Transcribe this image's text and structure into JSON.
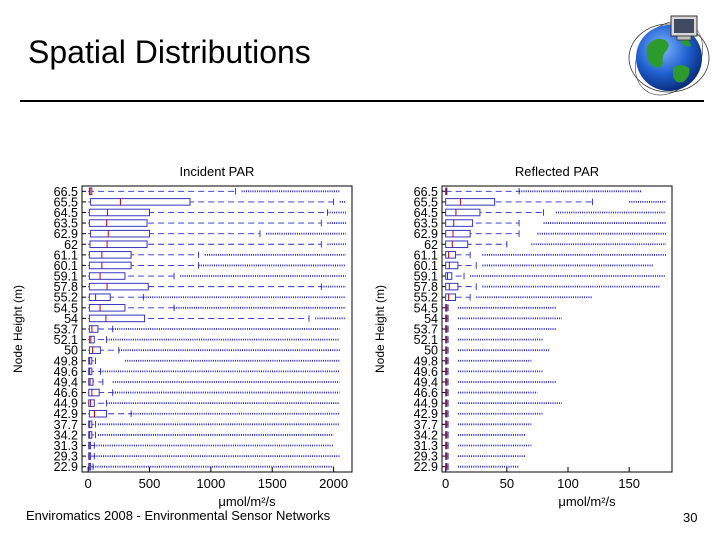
{
  "slide": {
    "title": "Spatial Distributions",
    "footer": "Enviromatics 2008 - Environmental Sensor Networks",
    "page_number": "30",
    "logo_icon": "globe-computer-icon"
  },
  "colors": {
    "box": "#3535c0",
    "whisker": "#2a2ad0",
    "outlier": "#2020c8",
    "median": "#c00000",
    "text": "#000000"
  },
  "chart_data": [
    {
      "type": "boxplot",
      "title": "Incident PAR",
      "ylabel": "Node Height (m)",
      "xlabel": "μmol/m²/s",
      "xlim": [
        -50,
        2150
      ],
      "xticks": [
        0,
        500,
        1000,
        1500,
        2000
      ],
      "categories": [
        "66.5",
        "65.5",
        "64.5",
        "63.5",
        "62.9",
        "62",
        "61.1",
        "60.1",
        "59.1",
        "57.8",
        "55.2",
        "54.5",
        "54",
        "53.7",
        "52.1",
        "50",
        "49.8",
        "49.6",
        "49.4",
        "46.6",
        "44.9",
        "42.9",
        "37.7",
        "34.2",
        "31.3",
        "29.3",
        "22.9"
      ],
      "boxes": [
        {
          "q1": 10,
          "q3": 30,
          "wlo": 0,
          "whi": 1200,
          "olo": 1250,
          "ohi": 2050
        },
        {
          "q1": 20,
          "q3": 830,
          "wlo": 0,
          "whi": 2000,
          "olo": 2050,
          "ohi": 2100
        },
        {
          "q1": 10,
          "q3": 500,
          "wlo": 0,
          "whi": 1950,
          "olo": 1950,
          "ohi": 2100
        },
        {
          "q1": 10,
          "q3": 480,
          "wlo": 0,
          "whi": 1900,
          "olo": 1950,
          "ohi": 2100
        },
        {
          "q1": 20,
          "q3": 500,
          "wlo": 0,
          "whi": 1400,
          "olo": 1450,
          "ohi": 2100
        },
        {
          "q1": 15,
          "q3": 480,
          "wlo": 0,
          "whi": 1900,
          "olo": 1950,
          "ohi": 2100
        },
        {
          "q1": 10,
          "q3": 350,
          "wlo": 0,
          "whi": 900,
          "olo": 950,
          "ohi": 2100
        },
        {
          "q1": 10,
          "q3": 350,
          "wlo": 0,
          "whi": 900,
          "olo": 900,
          "ohi": 2100
        },
        {
          "q1": 10,
          "q3": 300,
          "wlo": 0,
          "whi": 700,
          "olo": 750,
          "ohi": 2100
        },
        {
          "q1": 10,
          "q3": 490,
          "wlo": 0,
          "whi": 1900,
          "olo": 1900,
          "ohi": 2100
        },
        {
          "q1": 10,
          "q3": 180,
          "wlo": 0,
          "whi": 450,
          "olo": 450,
          "ohi": 2100
        },
        {
          "q1": 10,
          "q3": 300,
          "wlo": 0,
          "whi": 700,
          "olo": 700,
          "ohi": 2100
        },
        {
          "q1": 10,
          "q3": 460,
          "wlo": 0,
          "whi": 1800,
          "olo": 1850,
          "ohi": 2100
        },
        {
          "q1": 10,
          "q3": 80,
          "wlo": 0,
          "whi": 200,
          "olo": 200,
          "ohi": 2050
        },
        {
          "q1": 10,
          "q3": 50,
          "wlo": 0,
          "whi": 150,
          "olo": 150,
          "ohi": 2050
        },
        {
          "q1": 10,
          "q3": 100,
          "wlo": 0,
          "whi": 250,
          "olo": 250,
          "ohi": 2050
        },
        {
          "q1": 5,
          "q3": 30,
          "wlo": 0,
          "whi": 60,
          "olo": 300,
          "ohi": 2050
        },
        {
          "q1": 5,
          "q3": 30,
          "wlo": 0,
          "whi": 100,
          "olo": 100,
          "ohi": 2050
        },
        {
          "q1": 5,
          "q3": 40,
          "wlo": 0,
          "whi": 120,
          "olo": 200,
          "ohi": 2050
        },
        {
          "q1": 5,
          "q3": 90,
          "wlo": 0,
          "whi": 200,
          "olo": 200,
          "ohi": 2050
        },
        {
          "q1": 5,
          "q3": 50,
          "wlo": 0,
          "whi": 150,
          "olo": 150,
          "ohi": 2050
        },
        {
          "q1": 10,
          "q3": 150,
          "wlo": 0,
          "whi": 350,
          "olo": 350,
          "ohi": 2050
        },
        {
          "q1": 5,
          "q3": 30,
          "wlo": 0,
          "whi": 60,
          "olo": 80,
          "ohi": 2050
        },
        {
          "q1": 5,
          "q3": 30,
          "wlo": 0,
          "whi": 60,
          "olo": 80,
          "ohi": 2000
        },
        {
          "q1": 5,
          "q3": 20,
          "wlo": 0,
          "whi": 50,
          "olo": 50,
          "ohi": 2000
        },
        {
          "q1": 5,
          "q3": 20,
          "wlo": 0,
          "whi": 50,
          "olo": 50,
          "ohi": 2050
        },
        {
          "q1": 5,
          "q3": 20,
          "wlo": 0,
          "whi": 40,
          "olo": 40,
          "ohi": 2000
        }
      ]
    },
    {
      "type": "boxplot",
      "title": "Reflected PAR",
      "ylabel": "Node Height (m)",
      "xlabel": "μmol/m²/s",
      "xlim": [
        -3,
        185
      ],
      "xticks": [
        0,
        50,
        100,
        150
      ],
      "categories": [
        "66.5",
        "65.5",
        "64.5",
        "63.5",
        "62.9",
        "62",
        "61.1",
        "60.1",
        "59.1",
        "57.8",
        "55.2",
        "54.5",
        "54",
        "53.7",
        "52.1",
        "50",
        "49.8",
        "49.6",
        "49.4",
        "46.6",
        "44.9",
        "42.9",
        "37.7",
        "34.2",
        "31.3",
        "29.3",
        "22.9"
      ],
      "boxes": [
        {
          "q1": 0,
          "q3": 1,
          "wlo": 0,
          "whi": 60,
          "olo": 60,
          "ohi": 160
        },
        {
          "q1": 0,
          "q3": 40,
          "wlo": 0,
          "whi": 120,
          "olo": 150,
          "ohi": 180
        },
        {
          "q1": 0,
          "q3": 28,
          "wlo": 0,
          "whi": 80,
          "olo": 90,
          "ohi": 180
        },
        {
          "q1": 0,
          "q3": 22,
          "wlo": 0,
          "whi": 60,
          "olo": 80,
          "ohi": 180
        },
        {
          "q1": 0,
          "q3": 20,
          "wlo": 0,
          "whi": 60,
          "olo": 75,
          "ohi": 180
        },
        {
          "q1": 0,
          "q3": 18,
          "wlo": 0,
          "whi": 50,
          "olo": 70,
          "ohi": 180
        },
        {
          "q1": 0,
          "q3": 8,
          "wlo": 0,
          "whi": 20,
          "olo": 30,
          "ohi": 180
        },
        {
          "q1": 0,
          "q3": 10,
          "wlo": 0,
          "whi": 25,
          "olo": 30,
          "ohi": 170
        },
        {
          "q1": 0,
          "q3": 5,
          "wlo": 0,
          "whi": 15,
          "olo": 20,
          "ohi": 180
        },
        {
          "q1": 0,
          "q3": 10,
          "wlo": 0,
          "whi": 25,
          "olo": 30,
          "ohi": 175
        },
        {
          "q1": 0,
          "q3": 8,
          "wlo": 0,
          "whi": 20,
          "olo": 25,
          "ohi": 120
        },
        {
          "q1": 0,
          "q3": 1,
          "wlo": 0,
          "whi": 2,
          "olo": 10,
          "ohi": 90
        },
        {
          "q1": 0,
          "q3": 1,
          "wlo": 0,
          "whi": 2,
          "olo": 10,
          "ohi": 95
        },
        {
          "q1": 0,
          "q3": 1,
          "wlo": 0,
          "whi": 2,
          "olo": 10,
          "ohi": 90
        },
        {
          "q1": 0,
          "q3": 1,
          "wlo": 0,
          "whi": 2,
          "olo": 10,
          "ohi": 80
        },
        {
          "q1": 0,
          "q3": 1,
          "wlo": 0,
          "whi": 2,
          "olo": 10,
          "ohi": 85
        },
        {
          "q1": 0,
          "q3": 1,
          "wlo": 0,
          "whi": 2,
          "olo": 10,
          "ohi": 70
        },
        {
          "q1": 0,
          "q3": 1,
          "wlo": 0,
          "whi": 2,
          "olo": 10,
          "ohi": 80
        },
        {
          "q1": 0,
          "q3": 1,
          "wlo": 0,
          "whi": 2,
          "olo": 10,
          "ohi": 90
        },
        {
          "q1": 0,
          "q3": 1,
          "wlo": 0,
          "whi": 2,
          "olo": 10,
          "ohi": 75
        },
        {
          "q1": 0,
          "q3": 1,
          "wlo": 0,
          "whi": 2,
          "olo": 10,
          "ohi": 95
        },
        {
          "q1": 0,
          "q3": 1,
          "wlo": 0,
          "whi": 2,
          "olo": 10,
          "ohi": 80
        },
        {
          "q1": 0,
          "q3": 1,
          "wlo": 0,
          "whi": 2,
          "olo": 10,
          "ohi": 70
        },
        {
          "q1": 0,
          "q3": 1,
          "wlo": 0,
          "whi": 2,
          "olo": 10,
          "ohi": 65
        },
        {
          "q1": 0,
          "q3": 1,
          "wlo": 0,
          "whi": 2,
          "olo": 10,
          "ohi": 70
        },
        {
          "q1": 0,
          "q3": 1,
          "wlo": 0,
          "whi": 2,
          "olo": 10,
          "ohi": 65
        },
        {
          "q1": 0,
          "q3": 1,
          "wlo": 0,
          "whi": 2,
          "olo": 10,
          "ohi": 60
        }
      ]
    }
  ]
}
